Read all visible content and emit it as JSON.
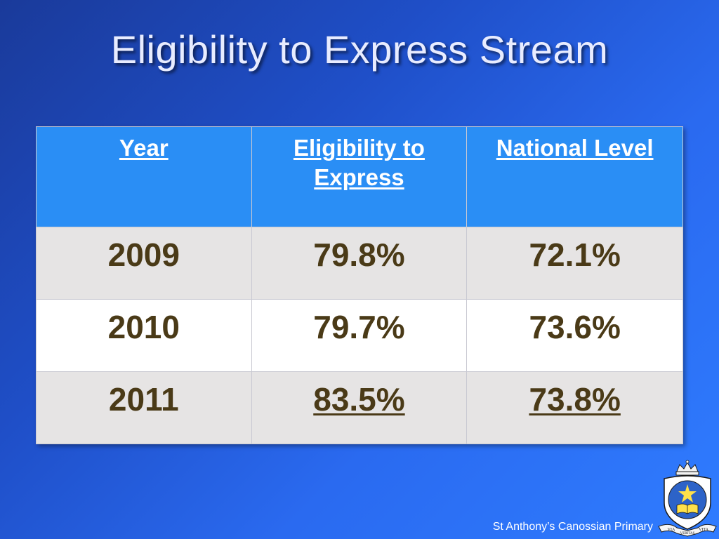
{
  "slide": {
    "title": "Eligibility to Express Stream",
    "footer": "St Anthony’s Canossian Primary"
  },
  "table": {
    "headers": [
      "Year",
      "Eligibility to Express",
      "National Level"
    ],
    "rows": [
      {
        "year": "2009",
        "eligibility": "79.8%",
        "national": "72.1%",
        "underlined": false
      },
      {
        "year": "2010",
        "eligibility": "79.7%",
        "national": "73.6%",
        "underlined": false
      },
      {
        "year": "2011",
        "eligibility": "83.5%",
        "national": "73.8%",
        "underlined": true
      }
    ]
  },
  "crest": {
    "motto_left": "VIA",
    "motto_mid": "VERITAS",
    "motto_right": "VITA"
  },
  "colors": {
    "header_bg": "#2a8ef5",
    "row_odd_bg": "#e6e4e4",
    "row_even_bg": "#ffffff",
    "cell_text": "#4a3a17",
    "title_text": "#e8ecff"
  }
}
